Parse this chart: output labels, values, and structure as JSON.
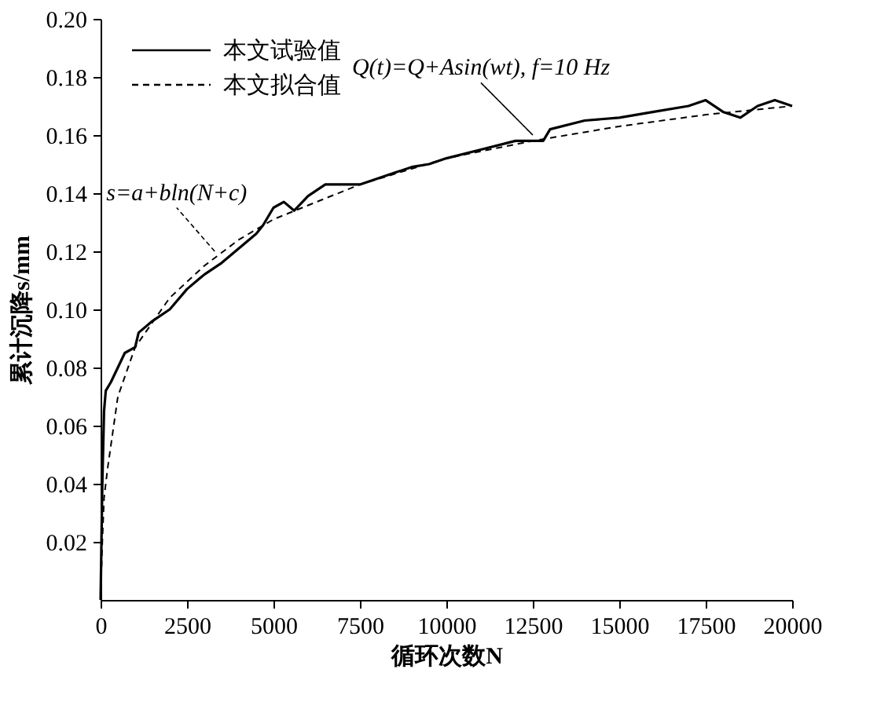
{
  "chart_data": {
    "type": "line",
    "xlabel": "循环次数N",
    "ylabel": "累计沉降s/mm",
    "xlim": [
      0,
      20000
    ],
    "xticks": [
      0,
      2500,
      5000,
      7500,
      10000,
      12500,
      15000,
      17500,
      20000
    ],
    "ylim": [
      0,
      0.2
    ],
    "yticks": [
      0.02,
      0.04,
      0.06,
      0.08,
      {
        "value": 0.1,
        "label": "0.10"
      },
      0.12,
      0.14,
      0.16,
      0.18,
      {
        "value": 0.2,
        "label": "0.20"
      }
    ],
    "grid": false,
    "legend": "top left",
    "series": [
      {
        "name": "本文试验值",
        "color": "#000000",
        "line_style": "solid",
        "x": [
          0,
          50,
          100,
          150,
          300,
          500,
          700,
          1000,
          1100,
          1500,
          2000,
          2500,
          3000,
          3500,
          4000,
          4500,
          4700,
          5000,
          5300,
          5600,
          6000,
          6500,
          7000,
          7500,
          8000,
          8500,
          9000,
          9500,
          10000,
          11000,
          12000,
          12800,
          13000,
          14000,
          15000,
          16000,
          17000,
          17500,
          18000,
          18500,
          19000,
          19500,
          20000
        ],
        "values": [
          0,
          0.04,
          0.065,
          0.072,
          0.075,
          0.08,
          0.085,
          0.087,
          0.092,
          0.096,
          0.1,
          0.107,
          0.112,
          0.116,
          0.121,
          0.126,
          0.129,
          0.135,
          0.137,
          0.134,
          0.139,
          0.143,
          0.143,
          0.143,
          0.145,
          0.147,
          0.149,
          0.15,
          0.152,
          0.155,
          0.158,
          0.158,
          0.162,
          0.165,
          0.166,
          0.168,
          0.17,
          0.172,
          0.168,
          0.166,
          0.17,
          0.172,
          0.17
        ]
      },
      {
        "name": "本文拟合值",
        "color": "#000000",
        "line_style": "dashed",
        "x": [
          0,
          50,
          100,
          200,
          500,
          1000,
          2000,
          3000,
          4000,
          5000,
          7500,
          10000,
          12500,
          15000,
          17500,
          20000
        ],
        "values": [
          0,
          0.02,
          0.035,
          0.045,
          0.07,
          0.087,
          0.104,
          0.115,
          0.124,
          0.131,
          0.143,
          0.152,
          0.158,
          0.163,
          0.167,
          0.17
        ]
      }
    ],
    "annotations": [
      {
        "text": "s=a+bln(N+c)",
        "x": 3300,
        "y": 0.12
      },
      {
        "text": "Q(t)=Q+Asin(wt), f=10 Hz",
        "x": 12500,
        "y": 0.16
      }
    ]
  }
}
